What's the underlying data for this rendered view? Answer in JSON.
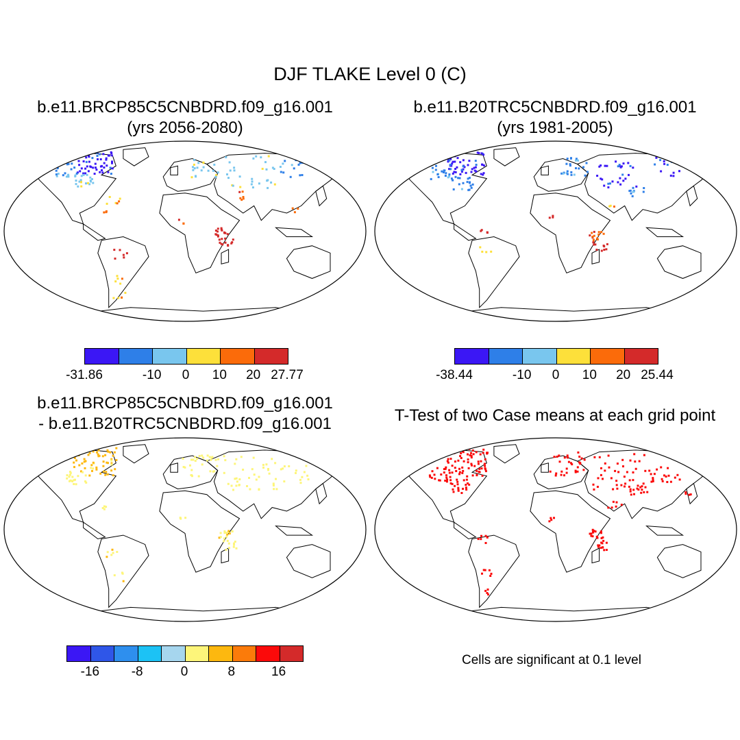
{
  "title": "DJF TLAKE Level 0 (C)",
  "panels": [
    {
      "title_line1": "b.e11.BRCP85C5CNBDRD.f09_g16.001",
      "title_line2": "(yrs 2056-2080)",
      "colors": [
        "#3b17f5",
        "#2e7fe8",
        "#79c6ee",
        "#fde03a",
        "#fb6b0a",
        "#d42a2a"
      ],
      "tick_labels": [
        "-31.86",
        "-10",
        "0",
        "10",
        "20",
        "27.77"
      ]
    },
    {
      "title_line1": "b.e11.B20TRC5CNBDRD.f09_g16.001",
      "title_line2": "(yrs 1981-2005)",
      "colors": [
        "#3b17f5",
        "#2e7fe8",
        "#79c6ee",
        "#fde03a",
        "#fb6b0a",
        "#d42a2a"
      ],
      "tick_labels": [
        "-38.44",
        "-10",
        "0",
        "10",
        "20",
        "25.44"
      ]
    },
    {
      "title_line1": "b.e11.BRCP85C5CNBDRD.f09_g16.001",
      "title_line2": "- b.e11.B20TRC5CNBDRD.f09_g16.001",
      "colors": [
        "#3b17f5",
        "#2f56e8",
        "#2e8fee",
        "#1cc2f5",
        "#a6d6ee",
        "#fdf57a",
        "#fdb80f",
        "#fb7b0a",
        "#fb0a0a",
        "#d42a2a"
      ],
      "tick_labels": [
        "-16",
        "-8",
        "0",
        "8",
        "16"
      ]
    },
    {
      "title_line1": "T-Test of two Case means at each grid point",
      "note": "Cells are significant at 0.1 level"
    }
  ]
}
